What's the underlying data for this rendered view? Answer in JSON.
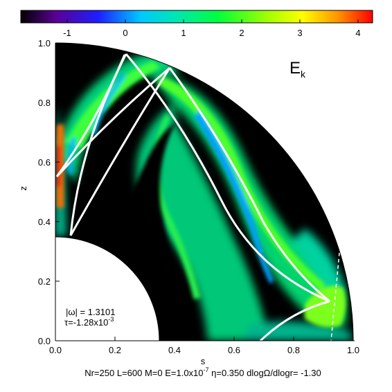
{
  "chart_data": {
    "type": "heatmap",
    "title": "E",
    "title_sub": "k",
    "xlabel": "s",
    "ylabel": "z",
    "xlim": [
      0.0,
      1.0
    ],
    "ylim": [
      0.0,
      1.0
    ],
    "x_ticks": [
      "0.0",
      "0.2",
      "0.4",
      "0.6",
      "0.8",
      "1.0"
    ],
    "y_ticks": [
      "0.0",
      "0.2",
      "0.4",
      "0.6",
      "0.8",
      "1.0"
    ],
    "colorbar": {
      "range": [
        -1.8,
        4.2
      ],
      "ticks": [
        "-1",
        "0",
        "1",
        "2",
        "3",
        "4"
      ],
      "colormap": [
        "#000000",
        "#5a0096",
        "#1e1eff",
        "#00c8ff",
        "#00e6b4",
        "#00ff3c",
        "#a0ff00",
        "#ffff00",
        "#ff9600",
        "#ff0000"
      ]
    },
    "domain": {
      "inner_radius": 0.35,
      "outer_radius": 1.0
    },
    "annotation": {
      "omega_label": "|ω| = 1.3101",
      "tau_prefix": "τ=-1.28x10",
      "tau_exp": "-3"
    },
    "characteristics_color": "#ffffff",
    "footer": {
      "part1": "Nr=250 L=600 M=0 E=1.0x10",
      "exp": "-7",
      "part2": " η=0.350 dlogΩ/dlogr= -1.30"
    }
  }
}
